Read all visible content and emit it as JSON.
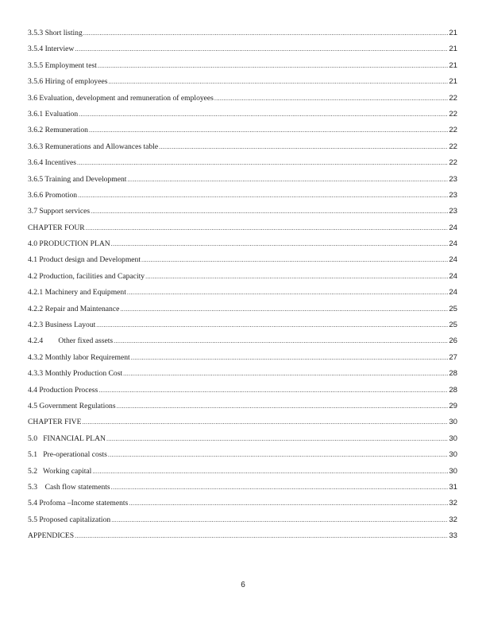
{
  "toc": [
    {
      "label": "3.5.3 Short listing",
      "page": "21"
    },
    {
      "label": "3.5.4 Interview",
      "page": "21"
    },
    {
      "label": "3.5.5 Employment test",
      "page": "21"
    },
    {
      "label": "3.5.6 Hiring of employees",
      "page": "21"
    },
    {
      "label": "3.6 Evaluation, development and remuneration of employees",
      "page": "22"
    },
    {
      "label": "3.6.1 Evaluation",
      "page": "22"
    },
    {
      "label": "3.6.2 Remuneration",
      "page": "22"
    },
    {
      "label": "3.6.3 Remunerations and Allowances table",
      "page": "22"
    },
    {
      "label": "3.6.4 Incentives",
      "page": "22"
    },
    {
      "label": "3.6.5 Training and Development",
      "page": "23"
    },
    {
      "label": "3.6.6 Promotion",
      "page": "23"
    },
    {
      "label": "3.7 Support services",
      "page": "23"
    },
    {
      "label": "CHAPTER FOUR",
      "page": "24"
    },
    {
      "label": "4.0 PRODUCTION PLAN",
      "page": "24"
    },
    {
      "label": "4.1 Product design and Development",
      "page": "24"
    },
    {
      "label": "4.2 Production, facilities and Capacity",
      "page": "24"
    },
    {
      "label": "4.2.1 Machinery and Equipment",
      "page": "24"
    },
    {
      "label": "4.2.2 Repair and Maintenance",
      "page": "25"
    },
    {
      "label": "4.2.3 Business Layout",
      "page": "25"
    },
    {
      "label": "4.2.4        Other fixed assets",
      "page": "26"
    },
    {
      "label": "4.3.2 Monthly labor Requirement",
      "page": "27"
    },
    {
      "label": "4.3.3 Monthly Production Cost",
      "page": "28"
    },
    {
      "label": "4.4 Production Process",
      "page": "28"
    },
    {
      "label": "4.5 Government Regulations",
      "page": "29"
    },
    {
      "label": "CHAPTER FIVE",
      "page": "30"
    },
    {
      "label": "5.0   FINANCIAL PLAN",
      "page": "30"
    },
    {
      "label": "5.1   Pre-operational costs",
      "page": "30"
    },
    {
      "label": "5.2   Working capital",
      "page": "30"
    },
    {
      "label": "5.3    Cash flow statements",
      "page": "31"
    },
    {
      "label": "5.4 Profoma –Income statements",
      "page": "32"
    },
    {
      "label": "5.5 Proposed capitalization",
      "page": "32"
    },
    {
      "label": "APPENDICES",
      "page": "33"
    }
  ],
  "page_number": "6"
}
